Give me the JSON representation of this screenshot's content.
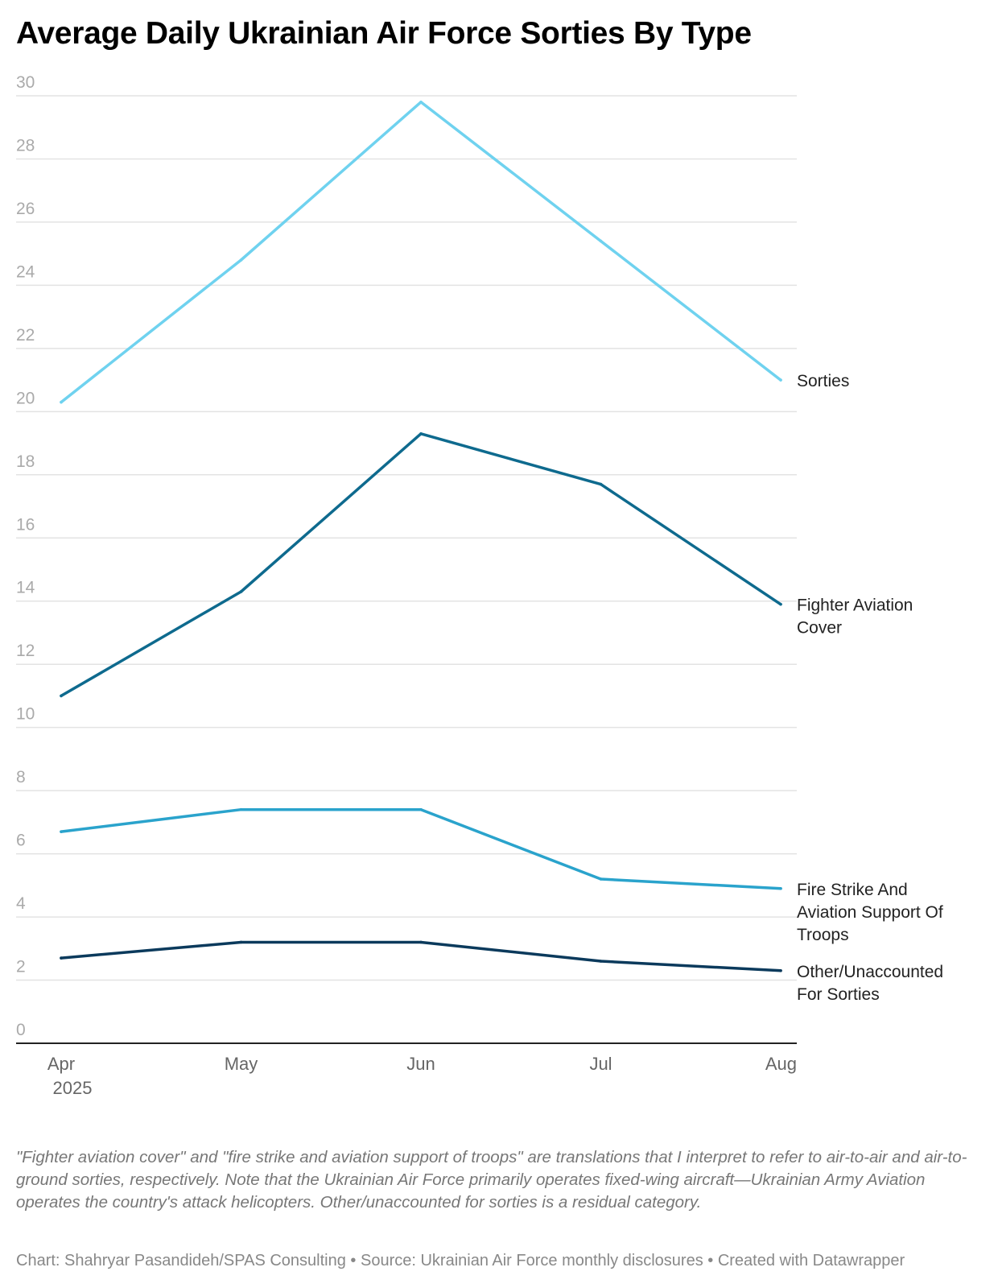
{
  "title": "Average Daily Ukrainian Air Force Sorties By Type",
  "chart_data": {
    "type": "line",
    "title": "Average Daily Ukrainian Air Force Sorties By Type",
    "xlabel": "",
    "ylabel": "",
    "categories": [
      "Apr",
      "May",
      "Jun",
      "Jul",
      "Aug"
    ],
    "year_label": "2025",
    "ylim": [
      0,
      30
    ],
    "yticks": [
      0,
      2,
      4,
      6,
      8,
      10,
      12,
      14,
      16,
      18,
      20,
      22,
      24,
      26,
      28,
      30
    ],
    "grid": true,
    "series": [
      {
        "name": "Sorties",
        "label_lines": [
          "Sorties"
        ],
        "color": "#6fd2ef",
        "values": [
          20.3,
          24.8,
          29.8,
          25.4,
          21.0
        ]
      },
      {
        "name": "Fighter Aviation Cover",
        "label_lines": [
          "Fighter Aviation",
          "Cover"
        ],
        "color": "#0e6a8e",
        "values": [
          11.0,
          14.3,
          19.3,
          17.7,
          13.9
        ]
      },
      {
        "name": "Fire Strike And Aviation Support Of Troops",
        "label_lines": [
          "Fire Strike And",
          "Aviation Support Of",
          "Troops"
        ],
        "color": "#2aa3cc",
        "values": [
          6.7,
          7.4,
          7.4,
          5.2,
          4.9
        ]
      },
      {
        "name": "Other/Unaccounted For Sorties",
        "label_lines": [
          "Other/Unaccounted",
          "For Sorties"
        ],
        "color": "#0b3a5c",
        "values": [
          2.7,
          3.2,
          3.2,
          2.6,
          2.3
        ]
      }
    ]
  },
  "note": "\"Fighter aviation cover\" and \"fire strike and aviation support of troops\" are translations that I interpret to refer to air-to-air and air-to-ground sorties, respectively. Note that the Ukrainian Air Force primarily operates fixed-wing aircraft—Ukrainian Army Aviation operates the country's attack helicopters. Other/unaccounted for sorties is a residual category.",
  "credits": "Chart: Shahryar Pasandideh/SPAS Consulting • Source: Ukrainian Air Force monthly disclosures • Created with Datawrapper"
}
